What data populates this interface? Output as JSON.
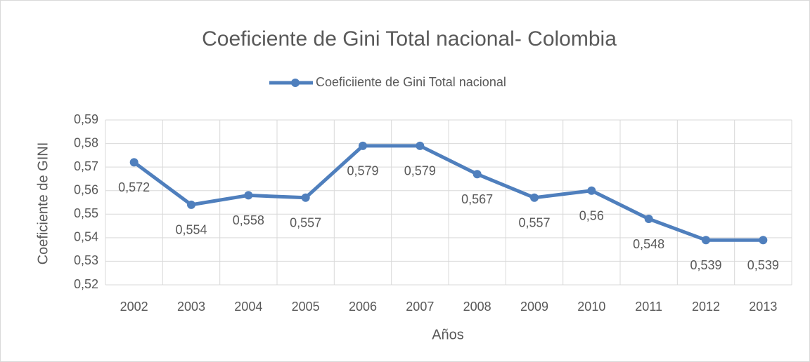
{
  "chart_data": {
    "type": "line",
    "title": "Coeficiente de Gini Total nacional- Colombia",
    "xlabel": "Años",
    "ylabel": "Coeficiente de GINI",
    "categories": [
      "2002",
      "2003",
      "2004",
      "2005",
      "2006",
      "2007",
      "2008",
      "2009",
      "2010",
      "2011",
      "2012",
      "2013"
    ],
    "series": [
      {
        "name": "Coeficiiente de Gini Total nacional",
        "color": "#4f7fbd",
        "values": [
          0.572,
          0.554,
          0.558,
          0.557,
          0.579,
          0.579,
          0.567,
          0.557,
          0.56,
          0.548,
          0.539,
          0.539
        ],
        "value_labels": [
          "0,572",
          "0,554",
          "0,558",
          "0,557",
          "0,579",
          "0,579",
          "0,567",
          "0,557",
          "0,56",
          "0,548",
          "0,539",
          "0,539"
        ]
      }
    ],
    "ylim": [
      0.52,
      0.59
    ],
    "yticks": [
      {
        "value": 0.52,
        "label": "0,52"
      },
      {
        "value": 0.53,
        "label": "0,53"
      },
      {
        "value": 0.54,
        "label": "0,54"
      },
      {
        "value": 0.55,
        "label": "0,55"
      },
      {
        "value": 0.56,
        "label": "0,56"
      },
      {
        "value": 0.57,
        "label": "0,57"
      },
      {
        "value": 0.58,
        "label": "0,58"
      },
      {
        "value": 0.59,
        "label": "0,59"
      }
    ],
    "grid": true,
    "legend": "top"
  }
}
